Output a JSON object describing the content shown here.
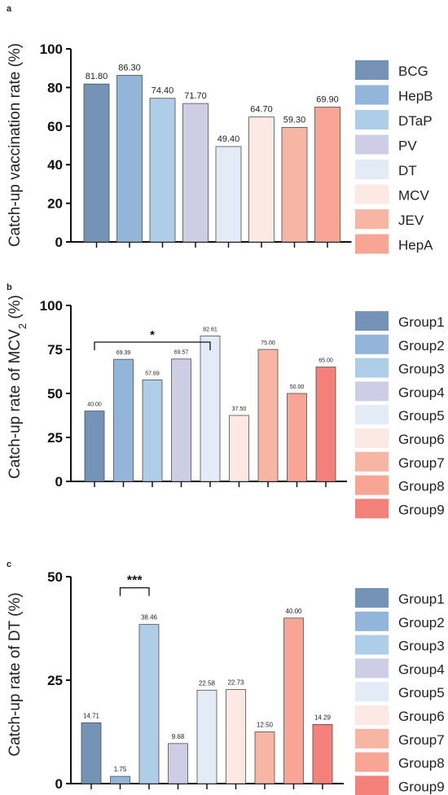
{
  "chart_data": [
    {
      "type": "bar",
      "panel": "a",
      "ylabel": "Catch-up vaccination rate (%)",
      "ylim": [
        0,
        100
      ],
      "yticks": [
        0,
        20,
        40,
        60,
        80,
        100
      ],
      "categories": [
        "BCG",
        "HepB",
        "DTaP",
        "PV",
        "DT",
        "MCV",
        "JEV",
        "HepA"
      ],
      "values": [
        81.8,
        86.3,
        74.4,
        71.7,
        49.4,
        64.7,
        59.3,
        69.9
      ],
      "value_labels": [
        "81.80",
        "86.30",
        "74.40",
        "71.70",
        "49.40",
        "64.70",
        "59.30",
        "69.90"
      ],
      "colors": [
        "#7493b7",
        "#94b5da",
        "#aecde8",
        "#cfcde6",
        "#e3ebf7",
        "#fde9e3",
        "#f7b6a4",
        "#f9a596"
      ],
      "legend": "right",
      "grid": false
    },
    {
      "type": "bar",
      "panel": "b",
      "ylabel": "Catch-up rate of MCV",
      "ylabel_sub": "2",
      "ylabel_suffix": " (%)",
      "ylim": [
        0,
        100
      ],
      "yticks": [
        0,
        25,
        50,
        75,
        100
      ],
      "categories": [
        "Group1",
        "Group2",
        "Group3",
        "Group4",
        "Group5",
        "Group6",
        "Group7",
        "Group8",
        "Group9"
      ],
      "values": [
        40.0,
        69.39,
        57.69,
        69.57,
        82.61,
        37.5,
        75.0,
        50.0,
        65.0
      ],
      "value_labels": [
        "40.00",
        "69.39",
        "57.69",
        "69.57",
        "82.61",
        "37.50",
        "75.00",
        "50.00",
        "65.00"
      ],
      "colors": [
        "#7493b7",
        "#94b5da",
        "#aecde8",
        "#cfcde6",
        "#e3ebf7",
        "#fde9e3",
        "#f7b6a4",
        "#f9a596",
        "#f48179"
      ],
      "significance": [
        {
          "from": 0,
          "to": 4,
          "label": "*"
        }
      ],
      "legend": "right",
      "grid": false
    },
    {
      "type": "bar",
      "panel": "c",
      "ylabel": "Catch-up rate of DT (%)",
      "ylim": [
        0,
        50
      ],
      "yticks": [
        0,
        25,
        50
      ],
      "categories": [
        "Group1",
        "Group2",
        "Group3",
        "Group4",
        "Group5",
        "Group6",
        "Group7",
        "Group8",
        "Group9"
      ],
      "values": [
        14.71,
        1.75,
        38.46,
        9.68,
        22.58,
        22.73,
        12.5,
        40.0,
        14.29
      ],
      "value_labels": [
        "14.71",
        "1.75",
        "38.46",
        "9.68",
        "22.58",
        "22.73",
        "12.50",
        "40.00",
        "14.29"
      ],
      "colors": [
        "#7493b7",
        "#94b5da",
        "#aecde8",
        "#cfcde6",
        "#e3ebf7",
        "#fde9e3",
        "#f7b6a4",
        "#f9a596",
        "#f48179"
      ],
      "significance": [
        {
          "from": 1,
          "to": 2,
          "label": "***"
        }
      ],
      "legend": "right",
      "grid": false
    }
  ]
}
